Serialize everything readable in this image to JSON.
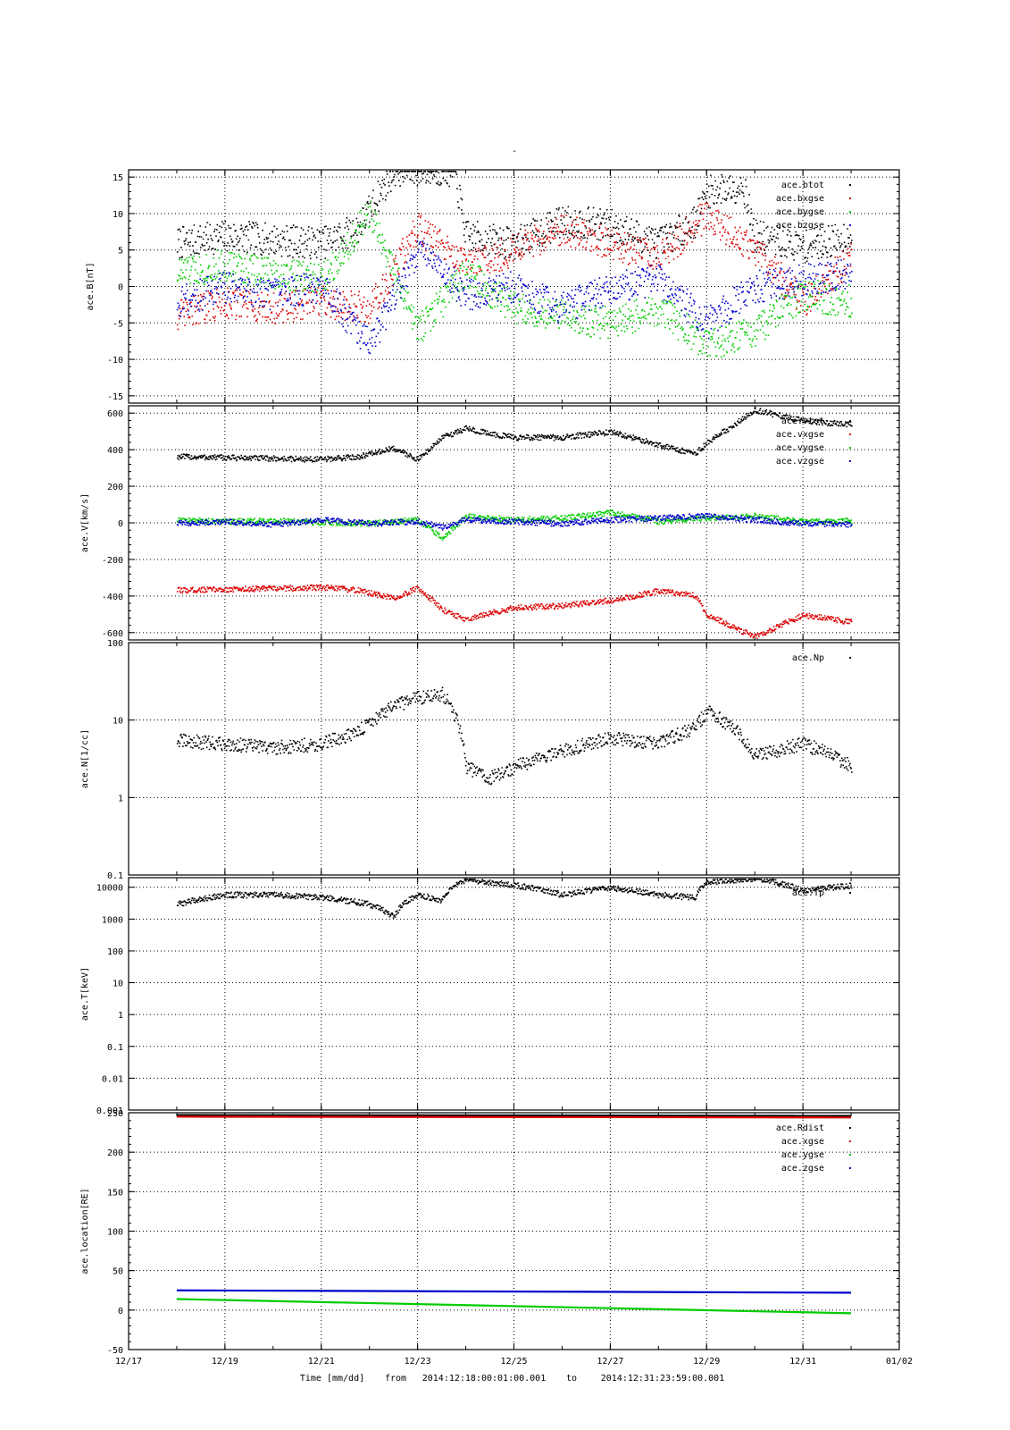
{
  "figure": {
    "title": "-",
    "xlabel": "Time [mm/dd]",
    "from_label": "from",
    "start_time": "2014:12:18:00:01:00.001",
    "to_label": "to",
    "end_time": "2014:12:31:23:59:00.001"
  },
  "colors": {
    "black": "#000000",
    "red": "#dd0000",
    "green": "#00cc00",
    "blue": "#0000cc"
  },
  "chart_data": [
    {
      "type": "scatter",
      "ylabel": "ace.B[nT]",
      "ylim": [
        -16,
        16
      ],
      "yscale": "linear",
      "yticks": [
        -15,
        -10,
        -5,
        0,
        5,
        10,
        15
      ],
      "ytick_labels": [
        "-15",
        "-10",
        "-5",
        "0",
        "5",
        "10",
        "15"
      ],
      "xlim": [
        "12/17",
        "01/02"
      ],
      "xtick_labels": [
        "12/17",
        "12/19",
        "12/21",
        "12/23",
        "12/25",
        "12/27",
        "12/29",
        "12/31",
        "01/02"
      ],
      "grid": true,
      "legend_position": "top-right",
      "series": [
        {
          "name": "ace.btot",
          "color": "#000000",
          "x": [
            "12/18",
            "12/19",
            "12/20",
            "12/21",
            "12/21 18:00",
            "12/22 12:00",
            "12/23",
            "12/23 18:00",
            "12/24",
            "12/25",
            "12/26",
            "12/27",
            "12/28",
            "12/28 18:00",
            "12/29",
            "12/29 18:00",
            "12/30",
            "12/31",
            "12/31 23:59"
          ],
          "y": [
            6,
            7,
            6.5,
            6,
            8,
            16,
            16,
            16,
            7,
            6,
            9,
            8.5,
            6,
            9,
            13,
            14,
            7,
            5.5,
            7
          ]
        },
        {
          "name": "ace.bxgse",
          "color": "#dd0000",
          "x": [
            "12/18",
            "12/19",
            "12/20",
            "12/21",
            "12/22",
            "12/23",
            "12/24",
            "12/25",
            "12/26",
            "12/27",
            "12/28",
            "12/29",
            "12/30",
            "12/31",
            "12/31 23:59"
          ],
          "y": [
            -4,
            -2,
            -3,
            -2,
            -3,
            8,
            3,
            5,
            8,
            6,
            4,
            10,
            5,
            -2,
            4
          ]
        },
        {
          "name": "ace.bygse",
          "color": "#00cc00",
          "x": [
            "12/18",
            "12/19",
            "12/20",
            "12/21",
            "12/22",
            "12/23",
            "12/24",
            "12/25",
            "12/26",
            "12/27",
            "12/28",
            "12/29",
            "12/30",
            "12/31",
            "12/31 23:59"
          ],
          "y": [
            2,
            3,
            2,
            1,
            10,
            -6,
            2,
            -3,
            -4,
            -5,
            -3,
            -8,
            -6,
            -1,
            -2
          ]
        },
        {
          "name": "ace.bzgse",
          "color": "#0000cc",
          "x": [
            "12/18",
            "12/19",
            "12/20",
            "12/21",
            "12/22",
            "12/23",
            "12/24",
            "12/25",
            "12/26",
            "12/27",
            "12/28",
            "12/29",
            "12/30",
            "12/31",
            "12/31 23:59"
          ],
          "y": [
            -2,
            0,
            -1,
            0,
            -8,
            5,
            -1,
            0,
            -3,
            0,
            1,
            -5,
            0,
            1,
            2
          ]
        }
      ]
    },
    {
      "type": "scatter",
      "ylabel": "ace.V[km/s]",
      "ylim": [
        -640,
        640
      ],
      "yscale": "linear",
      "yticks": [
        -600,
        -400,
        -200,
        0,
        200,
        400,
        600
      ],
      "ytick_labels": [
        "-600",
        "-400",
        "-200",
        "0",
        "200",
        "400",
        "600"
      ],
      "xlim": [
        "12/17",
        "01/02"
      ],
      "grid": true,
      "legend_position": "top-right",
      "series": [
        {
          "name": "ace.vtot",
          "color": "#000000",
          "x": [
            "12/18",
            "12/19",
            "12/20",
            "12/21",
            "12/21 18:00",
            "12/22 12:00",
            "12/23",
            "12/23 12:00",
            "12/24",
            "12/24 12:00",
            "12/25",
            "12/26",
            "12/27",
            "12/28",
            "12/28 18:00",
            "12/29",
            "12/30",
            "12/31",
            "12/31 23:59"
          ],
          "y": [
            365,
            360,
            355,
            350,
            365,
            410,
            350,
            470,
            520,
            490,
            470,
            470,
            500,
            430,
            380,
            440,
            620,
            560,
            540
          ]
        },
        {
          "name": "ace.vxgse",
          "color": "#dd0000",
          "x": [
            "12/18",
            "12/19",
            "12/20",
            "12/21",
            "12/21 18:00",
            "12/22 12:00",
            "12/23",
            "12/23 12:00",
            "12/24",
            "12/24 12:00",
            "12/25",
            "12/26",
            "12/27",
            "12/28",
            "12/28 18:00",
            "12/29",
            "12/30",
            "12/31",
            "12/31 23:59"
          ],
          "y": [
            -365,
            -360,
            -355,
            -350,
            -365,
            -410,
            -350,
            -470,
            -530,
            -490,
            -460,
            -450,
            -420,
            -370,
            -390,
            -500,
            -620,
            -500,
            -540
          ]
        },
        {
          "name": "ace.vygse",
          "color": "#00cc00",
          "x": [
            "12/18",
            "12/19",
            "12/20",
            "12/21",
            "12/22",
            "12/23",
            "12/23 12:00",
            "12/24",
            "12/25",
            "12/26",
            "12/27",
            "12/28",
            "12/29",
            "12/30",
            "12/31",
            "12/31 23:59"
          ],
          "y": [
            20,
            10,
            15,
            5,
            0,
            20,
            -80,
            40,
            20,
            30,
            60,
            10,
            30,
            40,
            10,
            15
          ]
        },
        {
          "name": "ace.vzgse",
          "color": "#0000cc",
          "x": [
            "12/18",
            "12/19",
            "12/20",
            "12/21",
            "12/22",
            "12/23",
            "12/23 12:00",
            "12/24",
            "12/25",
            "12/26",
            "12/27",
            "12/28",
            "12/29",
            "12/30",
            "12/31",
            "12/31 23:59"
          ],
          "y": [
            0,
            10,
            -5,
            20,
            0,
            10,
            -20,
            20,
            10,
            0,
            20,
            30,
            40,
            20,
            0,
            -5
          ]
        }
      ]
    },
    {
      "type": "scatter",
      "ylabel": "ace.N[1/cc]",
      "ylim": [
        0.1,
        100
      ],
      "yscale": "log",
      "yticks": [
        0.1,
        1,
        10,
        100
      ],
      "ytick_labels": [
        "0.1",
        "1",
        "10",
        "100"
      ],
      "xlim": [
        "12/17",
        "01/02"
      ],
      "grid": true,
      "legend_position": "top-right",
      "series": [
        {
          "name": "ace.Np",
          "color": "#000000",
          "x": [
            "12/18",
            "12/19",
            "12/20",
            "12/21",
            "12/21 18:00",
            "12/22 12:00",
            "12/23",
            "12/23 12:00",
            "12/24",
            "12/24 12:00",
            "12/25",
            "12/26",
            "12/27",
            "12/28",
            "12/28 18:00",
            "12/29",
            "12/30",
            "12/31",
            "12/31 23:59"
          ],
          "y": [
            5.5,
            5,
            4.5,
            5,
            7,
            15,
            20,
            22,
            2.5,
            1.8,
            2.5,
            4,
            6,
            5,
            8,
            13,
            3.5,
            5,
            2.5
          ]
        }
      ]
    },
    {
      "type": "scatter",
      "ylabel": "ace.T[keV]",
      "ylim": [
        0.001,
        20000
      ],
      "yscale": "log",
      "yticks": [
        0.001,
        0.01,
        0.1,
        1,
        10,
        100,
        1000,
        10000
      ],
      "ytick_labels": [
        "0.001",
        "0.01",
        "0.1",
        "1",
        "10",
        "100",
        "1000",
        "10000"
      ],
      "xlim": [
        "12/17",
        "01/02"
      ],
      "grid": true,
      "legend_position": "top-right",
      "series": [
        {
          "name": "ace.Tp",
          "color": "#000000",
          "x": [
            "12/18",
            "12/19",
            "12/20",
            "12/21",
            "12/22",
            "12/22 12:00",
            "12/23",
            "12/23 12:00",
            "12/24",
            "12/25",
            "12/26",
            "12/27",
            "12/28",
            "12/28 18:00",
            "12/29",
            "12/30",
            "12/31",
            "12/31 23:59"
          ],
          "y": [
            3000,
            6000,
            6000,
            5000,
            3000,
            1200,
            6000,
            4000,
            18000,
            12000,
            6000,
            10000,
            6000,
            5000,
            15000,
            20000,
            8000,
            12000
          ]
        }
      ]
    },
    {
      "type": "line",
      "ylabel": "ace.location[RE]",
      "ylim": [
        -50,
        250
      ],
      "yscale": "linear",
      "yticks": [
        -50,
        0,
        50,
        100,
        150,
        200,
        250
      ],
      "ytick_labels": [
        "-50",
        "0",
        "50",
        "100",
        "150",
        "200",
        "250"
      ],
      "xlim": [
        "12/17",
        "01/02"
      ],
      "grid": true,
      "legend_position": "top-right",
      "series": [
        {
          "name": "ace.Rdist",
          "color": "#000000",
          "x": [
            "12/18",
            "12/31 23:59"
          ],
          "y": [
            247,
            246
          ]
        },
        {
          "name": "ace.xgse",
          "color": "#dd0000",
          "x": [
            "12/18",
            "12/31 23:59"
          ],
          "y": [
            245,
            244
          ]
        },
        {
          "name": "ace.ygse",
          "color": "#00cc00",
          "x": [
            "12/18",
            "12/31 23:59"
          ],
          "y": [
            14,
            -4
          ]
        },
        {
          "name": "ace.zgse",
          "color": "#0000cc",
          "x": [
            "12/18",
            "12/31 23:59"
          ],
          "y": [
            25,
            22
          ]
        }
      ]
    }
  ]
}
